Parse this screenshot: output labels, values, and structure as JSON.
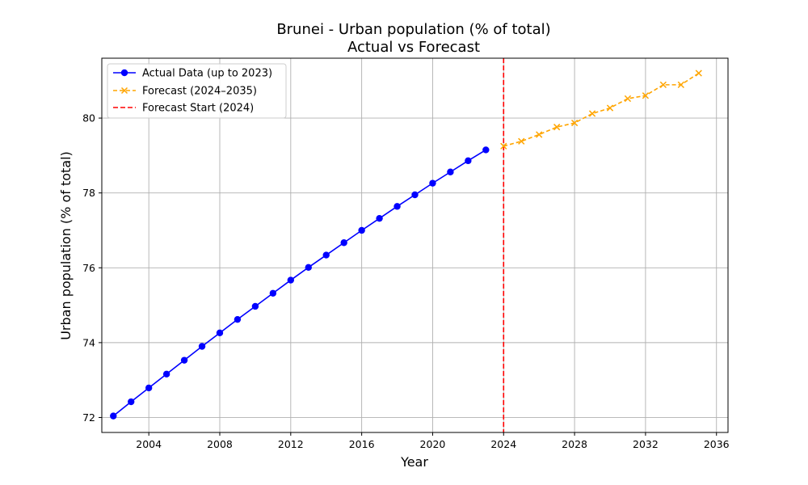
{
  "chart_data": {
    "type": "line",
    "title": "Brunei - Urban population (% of total)",
    "subtitle": "Actual vs Forecast",
    "xlabel": "Year",
    "ylabel": "Urban population (% of total)",
    "xlim": [
      2001.35,
      2036.65
    ],
    "ylim": [
      71.6,
      81.6
    ],
    "x_ticks": [
      2004,
      2008,
      2012,
      2016,
      2020,
      2024,
      2028,
      2032,
      2036
    ],
    "y_ticks": [
      72,
      74,
      76,
      78,
      80
    ],
    "grid": true,
    "legend_position": "top-left",
    "series": [
      {
        "name": "Actual Data (up to 2023)",
        "color": "#0000ff",
        "line_style": "solid",
        "marker": "circle",
        "x": [
          2002,
          2003,
          2004,
          2005,
          2006,
          2007,
          2008,
          2009,
          2010,
          2011,
          2012,
          2013,
          2014,
          2015,
          2016,
          2017,
          2018,
          2019,
          2020,
          2021,
          2022,
          2023
        ],
        "y": [
          72.04,
          72.42,
          72.79,
          73.16,
          73.53,
          73.9,
          74.26,
          74.62,
          74.97,
          75.32,
          75.67,
          76.01,
          76.34,
          76.67,
          77.0,
          77.32,
          77.64,
          77.95,
          78.26,
          78.56,
          78.86,
          79.15
        ]
      },
      {
        "name": "Forecast (2024–2035)",
        "color": "#ffa500",
        "line_style": "dashed",
        "marker": "x",
        "x": [
          2024,
          2025,
          2026,
          2027,
          2028,
          2029,
          2030,
          2031,
          2032,
          2033,
          2034,
          2035
        ],
        "y": [
          79.25,
          79.38,
          79.56,
          79.76,
          79.87,
          80.12,
          80.27,
          80.52,
          80.6,
          80.89,
          80.89,
          81.2
        ]
      }
    ],
    "vlines": [
      {
        "name": "Forecast Start (2024)",
        "x": 2024,
        "color": "#ff0000",
        "line_style": "dashed"
      }
    ]
  }
}
